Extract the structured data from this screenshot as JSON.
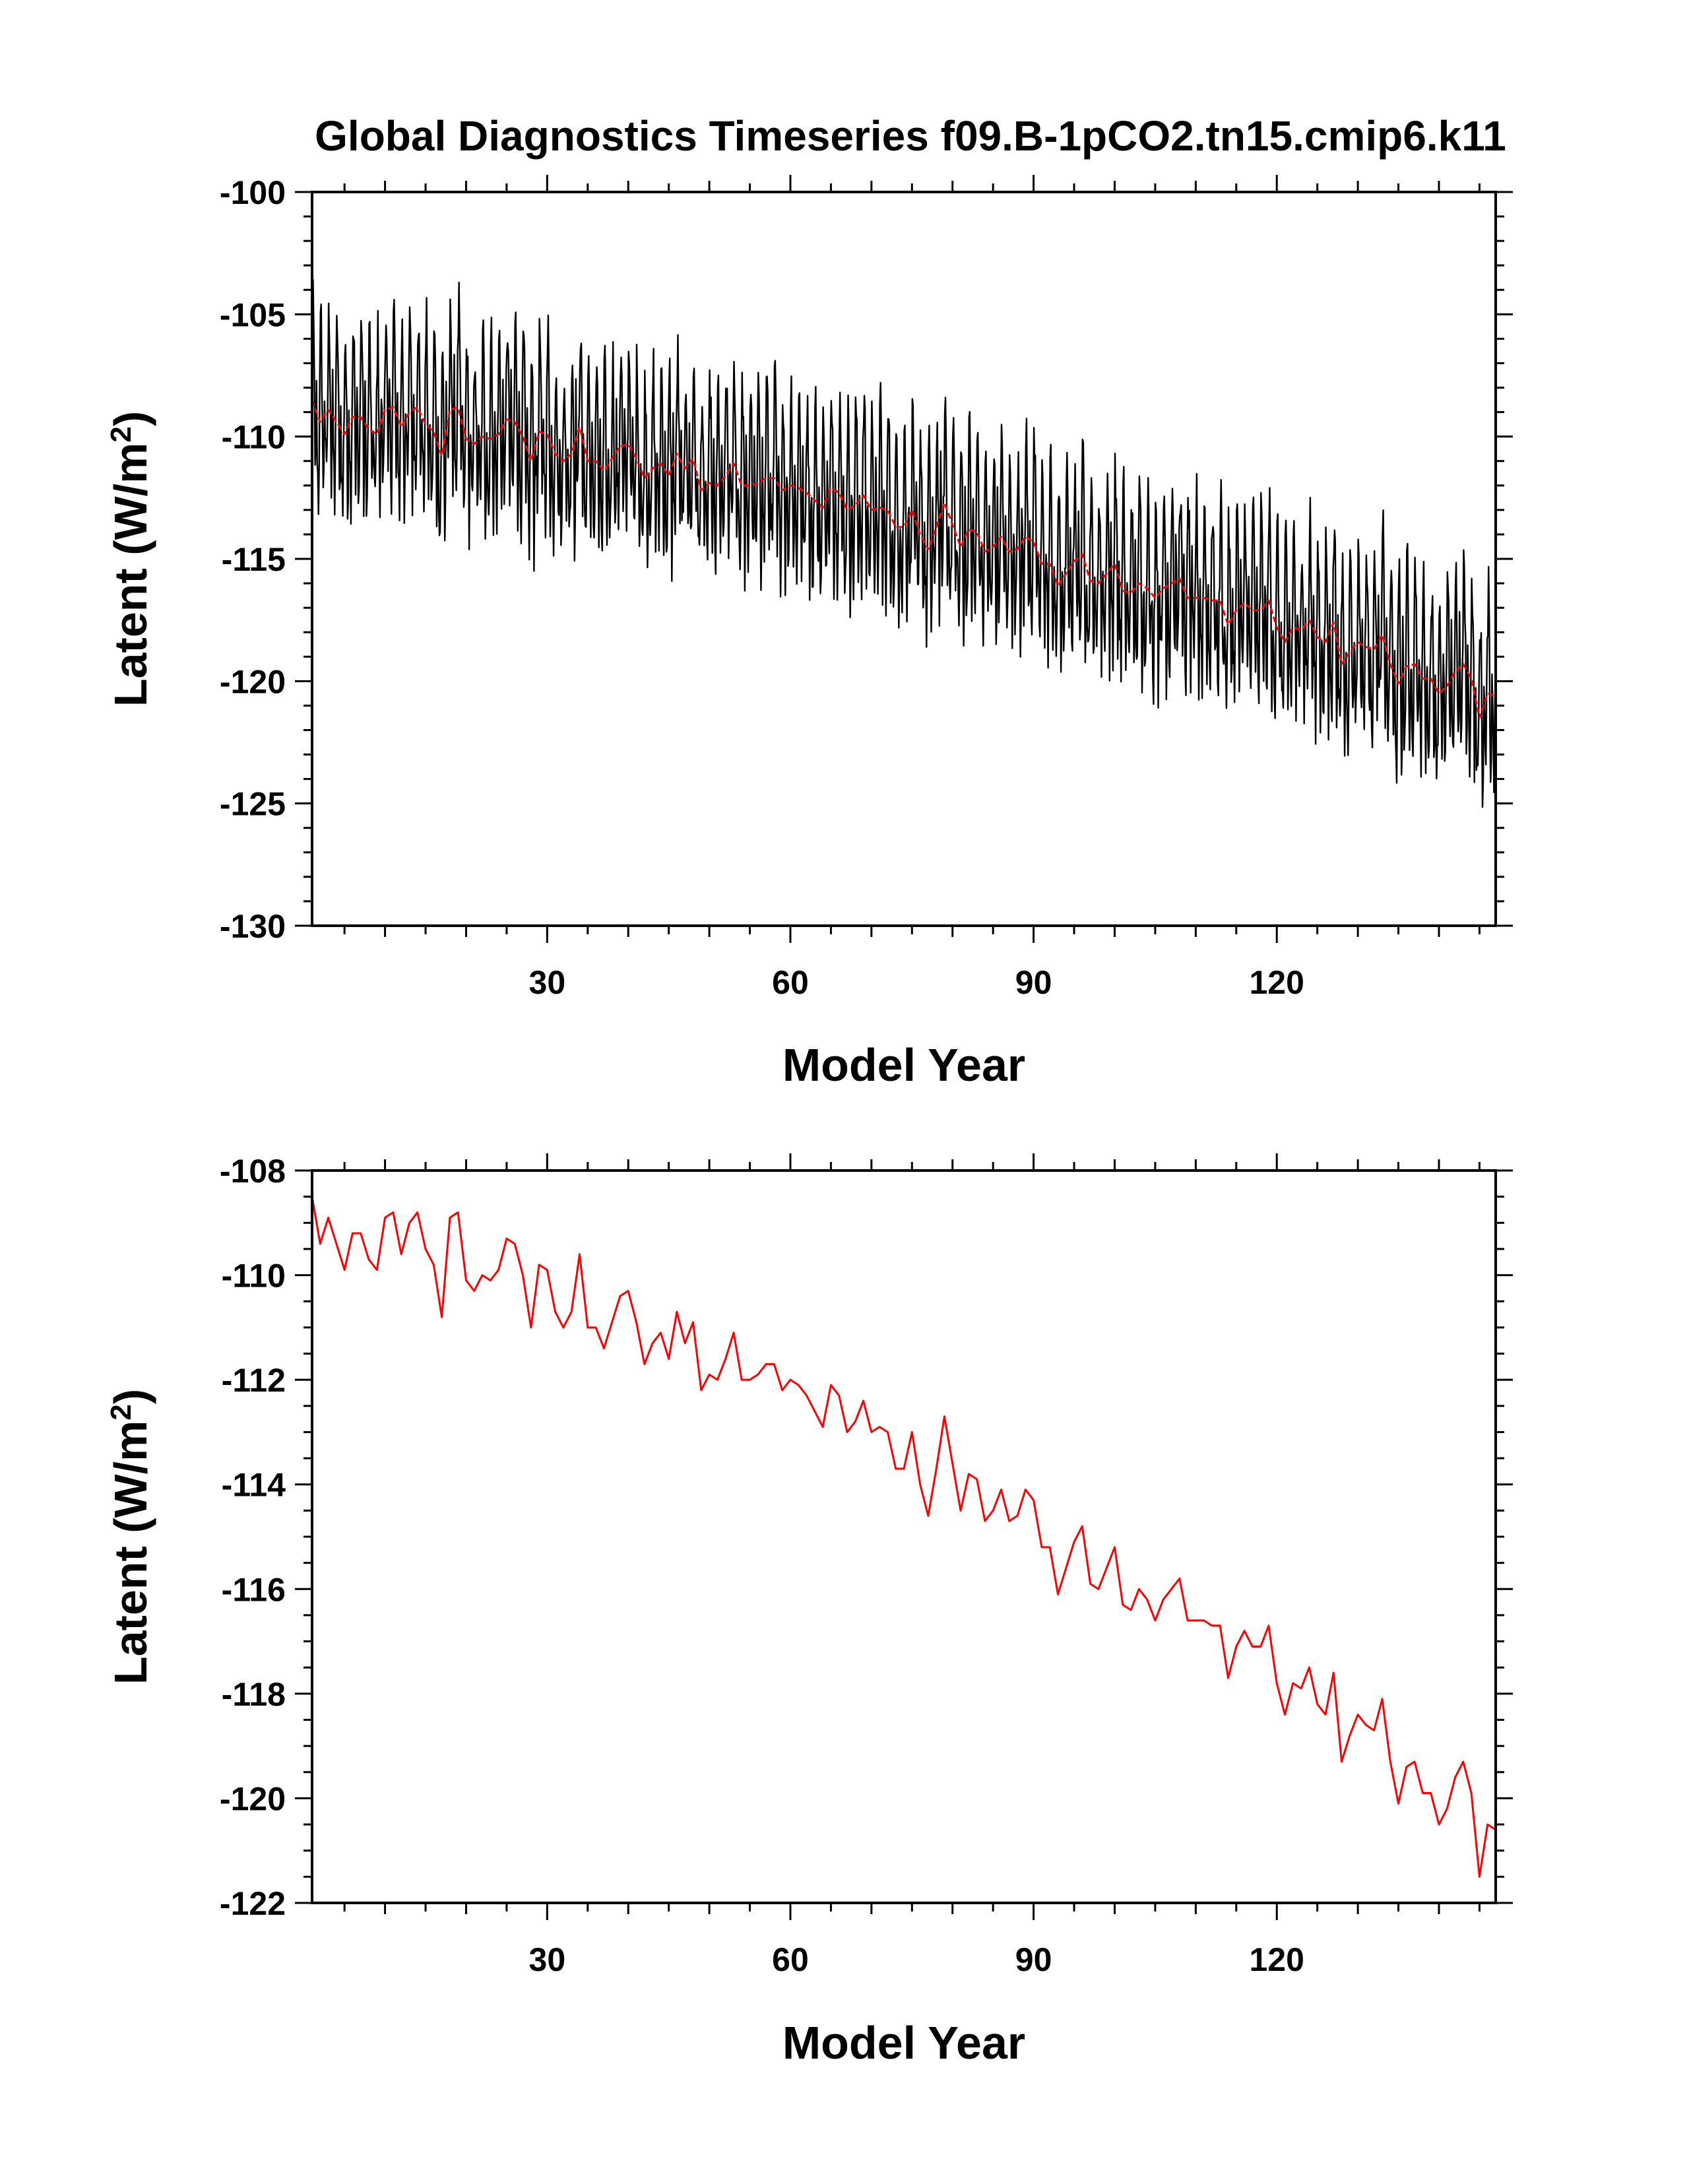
{
  "title": "Global Diagnostics Timeseries f09.B-1pCO2.tn15.cmip6.k11",
  "colors": {
    "monthly_line": "#000000",
    "annual_line": "#ff0000",
    "axes": "#000000",
    "background": "#ffffff"
  },
  "chart_data": [
    {
      "type": "line",
      "xlabel": "Model Year",
      "ylabel_html": "Latent (W/m²)",
      "ylabel_main": "Latent (W/m",
      "ylabel_sup": "2",
      "ylabel_close": ")",
      "xlim": [
        1,
        147
      ],
      "ylim": [
        -130,
        -100
      ],
      "x_ticks": [
        30,
        60,
        90,
        120
      ],
      "x_ticklabels": [
        "30",
        "60",
        "90",
        "120"
      ],
      "y_ticks": [
        -100,
        -105,
        -110,
        -115,
        -120,
        -125,
        -130
      ],
      "y_ticklabels": [
        "-100",
        "-105",
        "-110",
        "-115",
        "-120",
        "-125",
        "-130"
      ],
      "series": [
        {
          "color": "#000000",
          "sampling": "monthly (12 per year)",
          "seasonal_cycle": [
            -7.6,
            -9.4,
            -10.8,
            -11.6,
            -9.4,
            -7.2,
            -5.0,
            -4.6,
            -6.2,
            -8.6,
            -11.8,
            -10.0
          ],
          "noise_amplitude": 1.3
        },
        {
          "color": "#ff0000",
          "sampling": "annual"
        }
      ]
    },
    {
      "type": "line",
      "xlabel": "Model Year",
      "ylabel_html": "Latent (W/m²)",
      "ylabel_main": "Latent (W/m",
      "ylabel_sup": "2",
      "ylabel_close": ")",
      "xlim": [
        1,
        147
      ],
      "ylim": [
        -122,
        -108
      ],
      "x_ticks": [
        30,
        60,
        90,
        120
      ],
      "x_ticklabels": [
        "30",
        "60",
        "90",
        "120"
      ],
      "y_ticks": [
        -108,
        -110,
        -112,
        -114,
        -116,
        -118,
        -120,
        -122
      ],
      "y_ticklabels": [
        "-108",
        "-110",
        "-112",
        "-114",
        "-116",
        "-118",
        "-120",
        "-122"
      ],
      "series": [
        {
          "color": "#ff0000",
          "x": [
            1,
            2,
            3,
            4,
            5,
            6,
            7,
            8,
            9,
            10,
            11,
            12,
            13,
            14,
            15,
            16,
            17,
            18,
            19,
            20,
            21,
            22,
            23,
            24,
            25,
            26,
            27,
            28,
            29,
            30,
            31,
            32,
            33,
            34,
            35,
            36,
            37,
            38,
            39,
            40,
            41,
            42,
            43,
            44,
            45,
            46,
            47,
            48,
            49,
            50,
            51,
            52,
            53,
            54,
            55,
            56,
            57,
            58,
            59,
            60,
            61,
            62,
            63,
            64,
            65,
            66,
            67,
            68,
            69,
            70,
            71,
            72,
            73,
            74,
            75,
            76,
            77,
            78,
            79,
            80,
            81,
            82,
            83,
            84,
            85,
            86,
            87,
            88,
            89,
            90,
            91,
            92,
            93,
            94,
            95,
            96,
            97,
            98,
            99,
            100,
            101,
            102,
            103,
            104,
            105,
            106,
            107,
            108,
            109,
            110,
            111,
            112,
            113,
            114,
            115,
            116,
            117,
            118,
            119,
            120,
            121,
            122,
            123,
            124,
            125,
            126,
            127,
            128,
            129,
            130,
            131,
            132,
            133,
            134,
            135,
            136,
            137,
            138,
            139,
            140,
            141,
            142,
            143,
            144,
            145,
            146,
            147
          ],
          "values": [
            -108.5,
            -109.4,
            -108.9,
            -109.4,
            -109.9,
            -109.2,
            -109.2,
            -109.7,
            -109.9,
            -108.9,
            -108.8,
            -109.6,
            -109.0,
            -108.8,
            -109.5,
            -109.8,
            -110.8,
            -108.9,
            -108.8,
            -110.1,
            -110.3,
            -110.0,
            -110.1,
            -109.9,
            -109.3,
            -109.4,
            -110.0,
            -111.0,
            -109.8,
            -109.9,
            -110.7,
            -111.0,
            -110.7,
            -109.6,
            -111.0,
            -111.0,
            -111.4,
            -110.9,
            -110.4,
            -110.3,
            -110.9,
            -111.7,
            -111.3,
            -111.1,
            -111.6,
            -110.7,
            -111.3,
            -110.9,
            -112.2,
            -111.9,
            -112.0,
            -111.6,
            -111.1,
            -112.0,
            -112.0,
            -111.9,
            -111.7,
            -111.7,
            -112.2,
            -112.0,
            -112.1,
            -112.3,
            -112.6,
            -112.9,
            -112.1,
            -112.3,
            -113.0,
            -112.8,
            -112.4,
            -113.0,
            -112.9,
            -113.0,
            -113.7,
            -113.7,
            -113.0,
            -114.0,
            -114.6,
            -113.7,
            -112.7,
            -113.6,
            -114.5,
            -113.8,
            -113.9,
            -114.7,
            -114.5,
            -114.1,
            -114.7,
            -114.6,
            -114.1,
            -114.3,
            -115.2,
            -115.2,
            -116.1,
            -115.6,
            -115.1,
            -114.8,
            -115.9,
            -116.0,
            -115.6,
            -115.2,
            -116.3,
            -116.4,
            -116.0,
            -116.2,
            -116.6,
            -116.2,
            -116.0,
            -115.8,
            -116.6,
            -116.6,
            -116.6,
            -116.7,
            -116.7,
            -117.7,
            -117.1,
            -116.8,
            -117.1,
            -117.1,
            -116.7,
            -117.8,
            -118.4,
            -117.8,
            -117.9,
            -117.5,
            -118.2,
            -118.4,
            -117.6,
            -119.3,
            -118.8,
            -118.4,
            -118.6,
            -118.7,
            -118.1,
            -119.3,
            -120.1,
            -119.4,
            -119.3,
            -119.9,
            -119.9,
            -120.5,
            -120.2,
            -119.6,
            -119.3,
            -119.9,
            -121.5,
            -120.5,
            -120.6
          ]
        }
      ]
    }
  ]
}
